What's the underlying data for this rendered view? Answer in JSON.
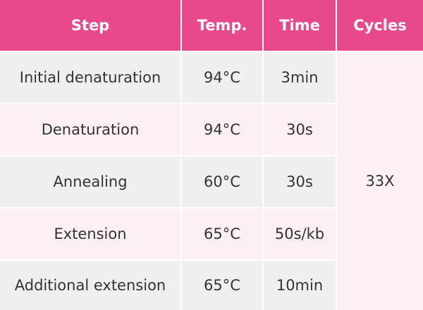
{
  "table": {
    "header": [
      "Step",
      "Temp.",
      "Time",
      "Cycles"
    ],
    "rows": [
      [
        "Initial denaturation",
        "94°C",
        "3min"
      ],
      [
        "Denaturation",
        "94°C",
        "30s"
      ],
      [
        "Annealing",
        "60°C",
        "30s"
      ],
      [
        "Extension",
        "65°C",
        "50s/kb"
      ],
      [
        "Additional extension",
        "65°C",
        "10min"
      ]
    ],
    "cycles": "33X"
  }
}
